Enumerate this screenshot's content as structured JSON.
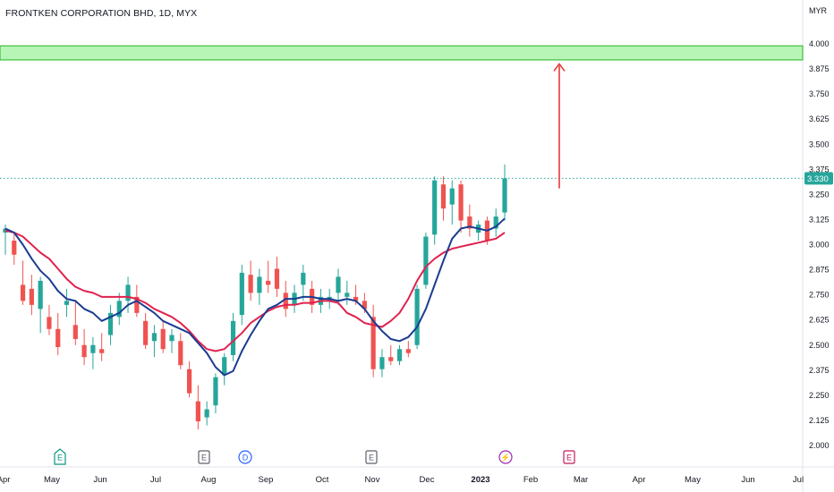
{
  "title": "FRONTKEN CORPORATION BHD, 1D, MYX",
  "chart_data": {
    "type": "candlestick",
    "currency_label": "MYR",
    "y_ticks": [
      "4.000",
      "3.875",
      "3.750",
      "3.625",
      "3.500",
      "3.375",
      "3.250",
      "3.125",
      "3.000",
      "2.875",
      "2.750",
      "2.625",
      "2.500",
      "2.375",
      "2.250",
      "2.125",
      "2.000"
    ],
    "ylim": [
      1.95,
      4.1
    ],
    "x_ticks": [
      "Apr",
      "May",
      "Jun",
      "Jul",
      "Aug",
      "Sep",
      "Oct",
      "Nov",
      "Dec",
      "2023",
      "Feb",
      "Mar",
      "Apr",
      "May",
      "Jun",
      "Jul"
    ],
    "last_price": "3.330",
    "resistance_zone": [
      3.92,
      3.99
    ],
    "target_arrow": {
      "from": 3.28,
      "to": 3.9
    },
    "event_markers": [
      "E",
      "E",
      "D",
      "E",
      "⚡",
      "E"
    ],
    "colors": {
      "up": "#26a69a",
      "down": "#ef5350",
      "ma_fast": "#1a3c91",
      "ma_slow": "#e0224e",
      "zone_fill": "#b6f5b6",
      "zone_border": "#3fbf3f",
      "arrow": "#e53935",
      "price_tag": "#26a69a"
    },
    "ma_fast": [
      3.08,
      3.06,
      3.0,
      2.93,
      2.87,
      2.83,
      2.77,
      2.73,
      2.72,
      2.68,
      2.66,
      2.62,
      2.64,
      2.66,
      2.7,
      2.72,
      2.69,
      2.66,
      2.62,
      2.6,
      2.58,
      2.56,
      2.51,
      2.46,
      2.39,
      2.35,
      2.37,
      2.47,
      2.55,
      2.62,
      2.68,
      2.7,
      2.73,
      2.73,
      2.74,
      2.74,
      2.73,
      2.73,
      2.72,
      2.73,
      2.72,
      2.68,
      2.62,
      2.57,
      2.53,
      2.52,
      2.54,
      2.59,
      2.68,
      2.8,
      2.92,
      3.03,
      3.08,
      3.09,
      3.08,
      3.07,
      3.09,
      3.13
    ],
    "ma_slow": [
      3.07,
      3.06,
      3.04,
      3.0,
      2.96,
      2.93,
      2.88,
      2.83,
      2.79,
      2.77,
      2.76,
      2.74,
      2.74,
      2.74,
      2.74,
      2.73,
      2.71,
      2.68,
      2.66,
      2.64,
      2.61,
      2.57,
      2.52,
      2.48,
      2.47,
      2.48,
      2.52,
      2.56,
      2.61,
      2.64,
      2.67,
      2.69,
      2.7,
      2.7,
      2.71,
      2.71,
      2.72,
      2.72,
      2.71,
      2.66,
      2.64,
      2.61,
      2.6,
      2.59,
      2.62,
      2.66,
      2.73,
      2.82,
      2.89,
      2.93,
      2.96,
      2.98,
      2.99,
      3.0,
      3.01,
      3.02,
      3.03,
      3.06
    ],
    "candles": [
      {
        "o": 3.06,
        "h": 3.1,
        "l": 2.95,
        "c": 3.08
      },
      {
        "o": 3.02,
        "h": 3.06,
        "l": 2.9,
        "c": 2.95
      },
      {
        "o": 2.8,
        "h": 2.92,
        "l": 2.7,
        "c": 2.72
      },
      {
        "o": 2.78,
        "h": 2.85,
        "l": 2.65,
        "c": 2.7
      },
      {
        "o": 2.68,
        "h": 2.84,
        "l": 2.56,
        "c": 2.82
      },
      {
        "o": 2.64,
        "h": 2.7,
        "l": 2.55,
        "c": 2.58
      },
      {
        "o": 2.58,
        "h": 2.66,
        "l": 2.45,
        "c": 2.49
      },
      {
        "o": 2.7,
        "h": 2.78,
        "l": 2.64,
        "c": 2.72
      },
      {
        "o": 2.6,
        "h": 2.72,
        "l": 2.5,
        "c": 2.53
      },
      {
        "o": 2.5,
        "h": 2.58,
        "l": 2.4,
        "c": 2.44
      },
      {
        "o": 2.46,
        "h": 2.54,
        "l": 2.38,
        "c": 2.5
      },
      {
        "o": 2.48,
        "h": 2.56,
        "l": 2.42,
        "c": 2.46
      },
      {
        "o": 2.55,
        "h": 2.7,
        "l": 2.5,
        "c": 2.66
      },
      {
        "o": 2.64,
        "h": 2.76,
        "l": 2.6,
        "c": 2.72
      },
      {
        "o": 2.72,
        "h": 2.84,
        "l": 2.66,
        "c": 2.8
      },
      {
        "o": 2.74,
        "h": 2.8,
        "l": 2.64,
        "c": 2.66
      },
      {
        "o": 2.62,
        "h": 2.66,
        "l": 2.48,
        "c": 2.5
      },
      {
        "o": 2.52,
        "h": 2.6,
        "l": 2.44,
        "c": 2.56
      },
      {
        "o": 2.58,
        "h": 2.62,
        "l": 2.46,
        "c": 2.48
      },
      {
        "o": 2.52,
        "h": 2.58,
        "l": 2.46,
        "c": 2.55
      },
      {
        "o": 2.52,
        "h": 2.56,
        "l": 2.38,
        "c": 2.4
      },
      {
        "o": 2.38,
        "h": 2.42,
        "l": 2.24,
        "c": 2.26
      },
      {
        "o": 2.22,
        "h": 2.3,
        "l": 2.08,
        "c": 2.12
      },
      {
        "o": 2.14,
        "h": 2.22,
        "l": 2.1,
        "c": 2.18
      },
      {
        "o": 2.2,
        "h": 2.36,
        "l": 2.16,
        "c": 2.34
      },
      {
        "o": 2.35,
        "h": 2.46,
        "l": 2.3,
        "c": 2.44
      },
      {
        "o": 2.45,
        "h": 2.66,
        "l": 2.42,
        "c": 2.62
      },
      {
        "o": 2.65,
        "h": 2.9,
        "l": 2.6,
        "c": 2.86
      },
      {
        "o": 2.85,
        "h": 2.92,
        "l": 2.72,
        "c": 2.76
      },
      {
        "o": 2.76,
        "h": 2.88,
        "l": 2.7,
        "c": 2.84
      },
      {
        "o": 2.82,
        "h": 2.92,
        "l": 2.76,
        "c": 2.8
      },
      {
        "o": 2.88,
        "h": 2.94,
        "l": 2.74,
        "c": 2.78
      },
      {
        "o": 2.76,
        "h": 2.82,
        "l": 2.64,
        "c": 2.68
      },
      {
        "o": 2.7,
        "h": 2.8,
        "l": 2.66,
        "c": 2.76
      },
      {
        "o": 2.8,
        "h": 2.9,
        "l": 2.72,
        "c": 2.86
      },
      {
        "o": 2.78,
        "h": 2.82,
        "l": 2.66,
        "c": 2.7
      },
      {
        "o": 2.7,
        "h": 2.78,
        "l": 2.66,
        "c": 2.74
      },
      {
        "o": 2.72,
        "h": 2.78,
        "l": 2.68,
        "c": 2.74
      },
      {
        "o": 2.76,
        "h": 2.88,
        "l": 2.7,
        "c": 2.84
      },
      {
        "o": 2.74,
        "h": 2.82,
        "l": 2.7,
        "c": 2.76
      },
      {
        "o": 2.74,
        "h": 2.8,
        "l": 2.7,
        "c": 2.72
      },
      {
        "o": 2.72,
        "h": 2.76,
        "l": 2.66,
        "c": 2.68
      },
      {
        "o": 2.64,
        "h": 2.7,
        "l": 2.34,
        "c": 2.38
      },
      {
        "o": 2.38,
        "h": 2.48,
        "l": 2.34,
        "c": 2.44
      },
      {
        "o": 2.44,
        "h": 2.5,
        "l": 2.4,
        "c": 2.42
      },
      {
        "o": 2.42,
        "h": 2.5,
        "l": 2.4,
        "c": 2.48
      },
      {
        "o": 2.48,
        "h": 2.52,
        "l": 2.44,
        "c": 2.46
      },
      {
        "o": 2.5,
        "h": 2.8,
        "l": 2.48,
        "c": 2.78
      },
      {
        "o": 2.8,
        "h": 3.06,
        "l": 2.78,
        "c": 3.04
      },
      {
        "o": 3.05,
        "h": 3.34,
        "l": 3.0,
        "c": 3.32
      },
      {
        "o": 3.3,
        "h": 3.34,
        "l": 3.12,
        "c": 3.18
      },
      {
        "o": 3.2,
        "h": 3.32,
        "l": 3.1,
        "c": 3.28
      },
      {
        "o": 3.3,
        "h": 3.32,
        "l": 3.06,
        "c": 3.12
      },
      {
        "o": 3.14,
        "h": 3.2,
        "l": 3.04,
        "c": 3.08
      },
      {
        "o": 3.06,
        "h": 3.12,
        "l": 3.02,
        "c": 3.1
      },
      {
        "o": 3.12,
        "h": 3.14,
        "l": 3.0,
        "c": 3.02
      },
      {
        "o": 3.08,
        "h": 3.18,
        "l": 3.04,
        "c": 3.14
      },
      {
        "o": 3.16,
        "h": 3.4,
        "l": 3.12,
        "c": 3.33
      }
    ]
  }
}
